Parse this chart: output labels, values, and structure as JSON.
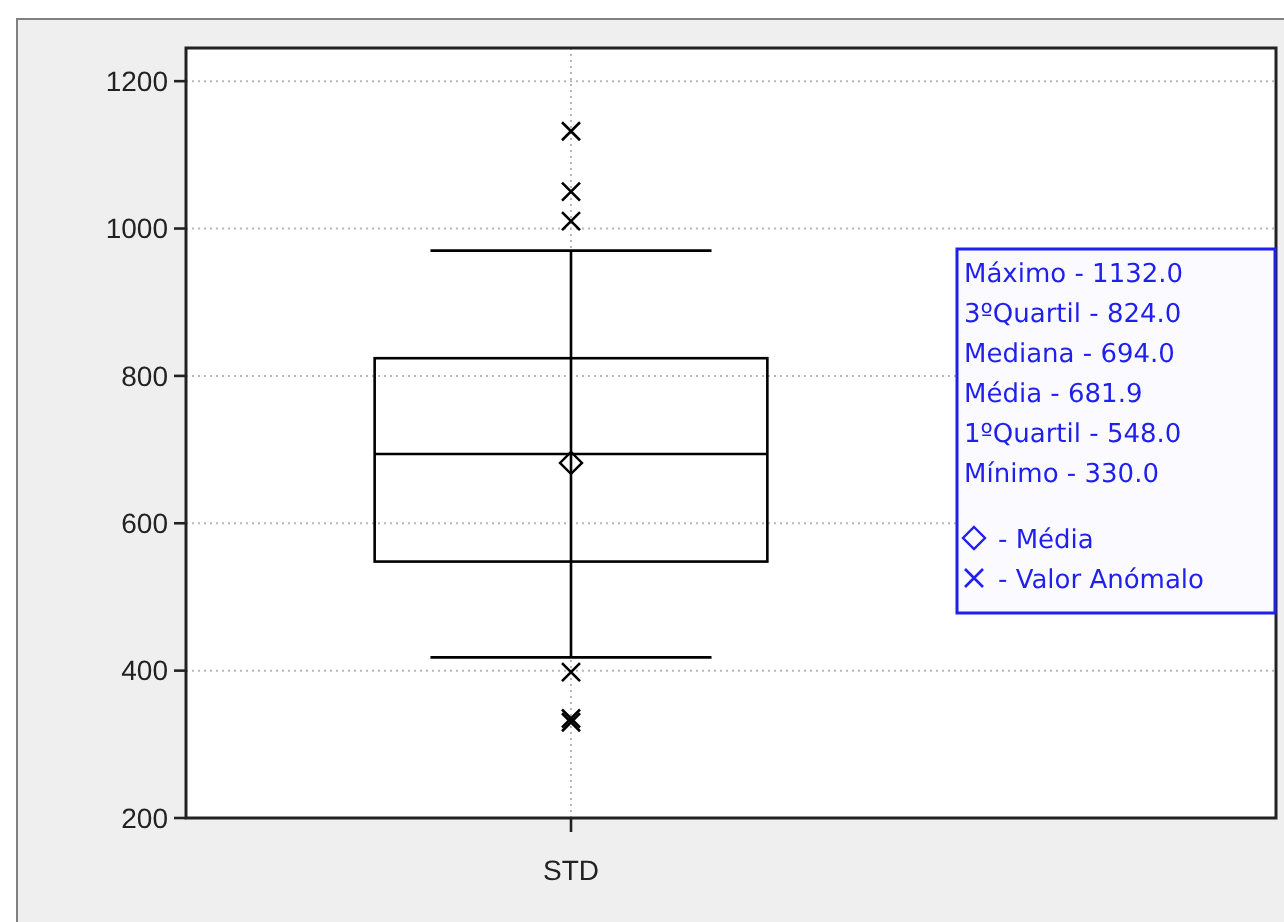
{
  "chart_data": {
    "type": "box",
    "categories": [
      "STD"
    ],
    "color": "#000000",
    "boxes": [
      {
        "low": 418,
        "q1": 548,
        "median": 694,
        "q3": 824,
        "high": 970,
        "mean": 681.9,
        "outliers": [
          1132,
          1050,
          1010,
          398,
          335,
          330
        ]
      }
    ],
    "ylim": [
      200,
      1245
    ],
    "yticks": [
      200,
      400,
      600,
      800,
      1000,
      1200
    ],
    "grid": true,
    "annotations": [
      "Máximo - 1132.0",
      "3ºQuartil - 824.0",
      "Mediana - 694.0",
      "Média - 681.9",
      "1ºQuartil - 548.0",
      "Mínimo - 330.0",
      "- Média",
      "- Valor Anómalo"
    ]
  }
}
